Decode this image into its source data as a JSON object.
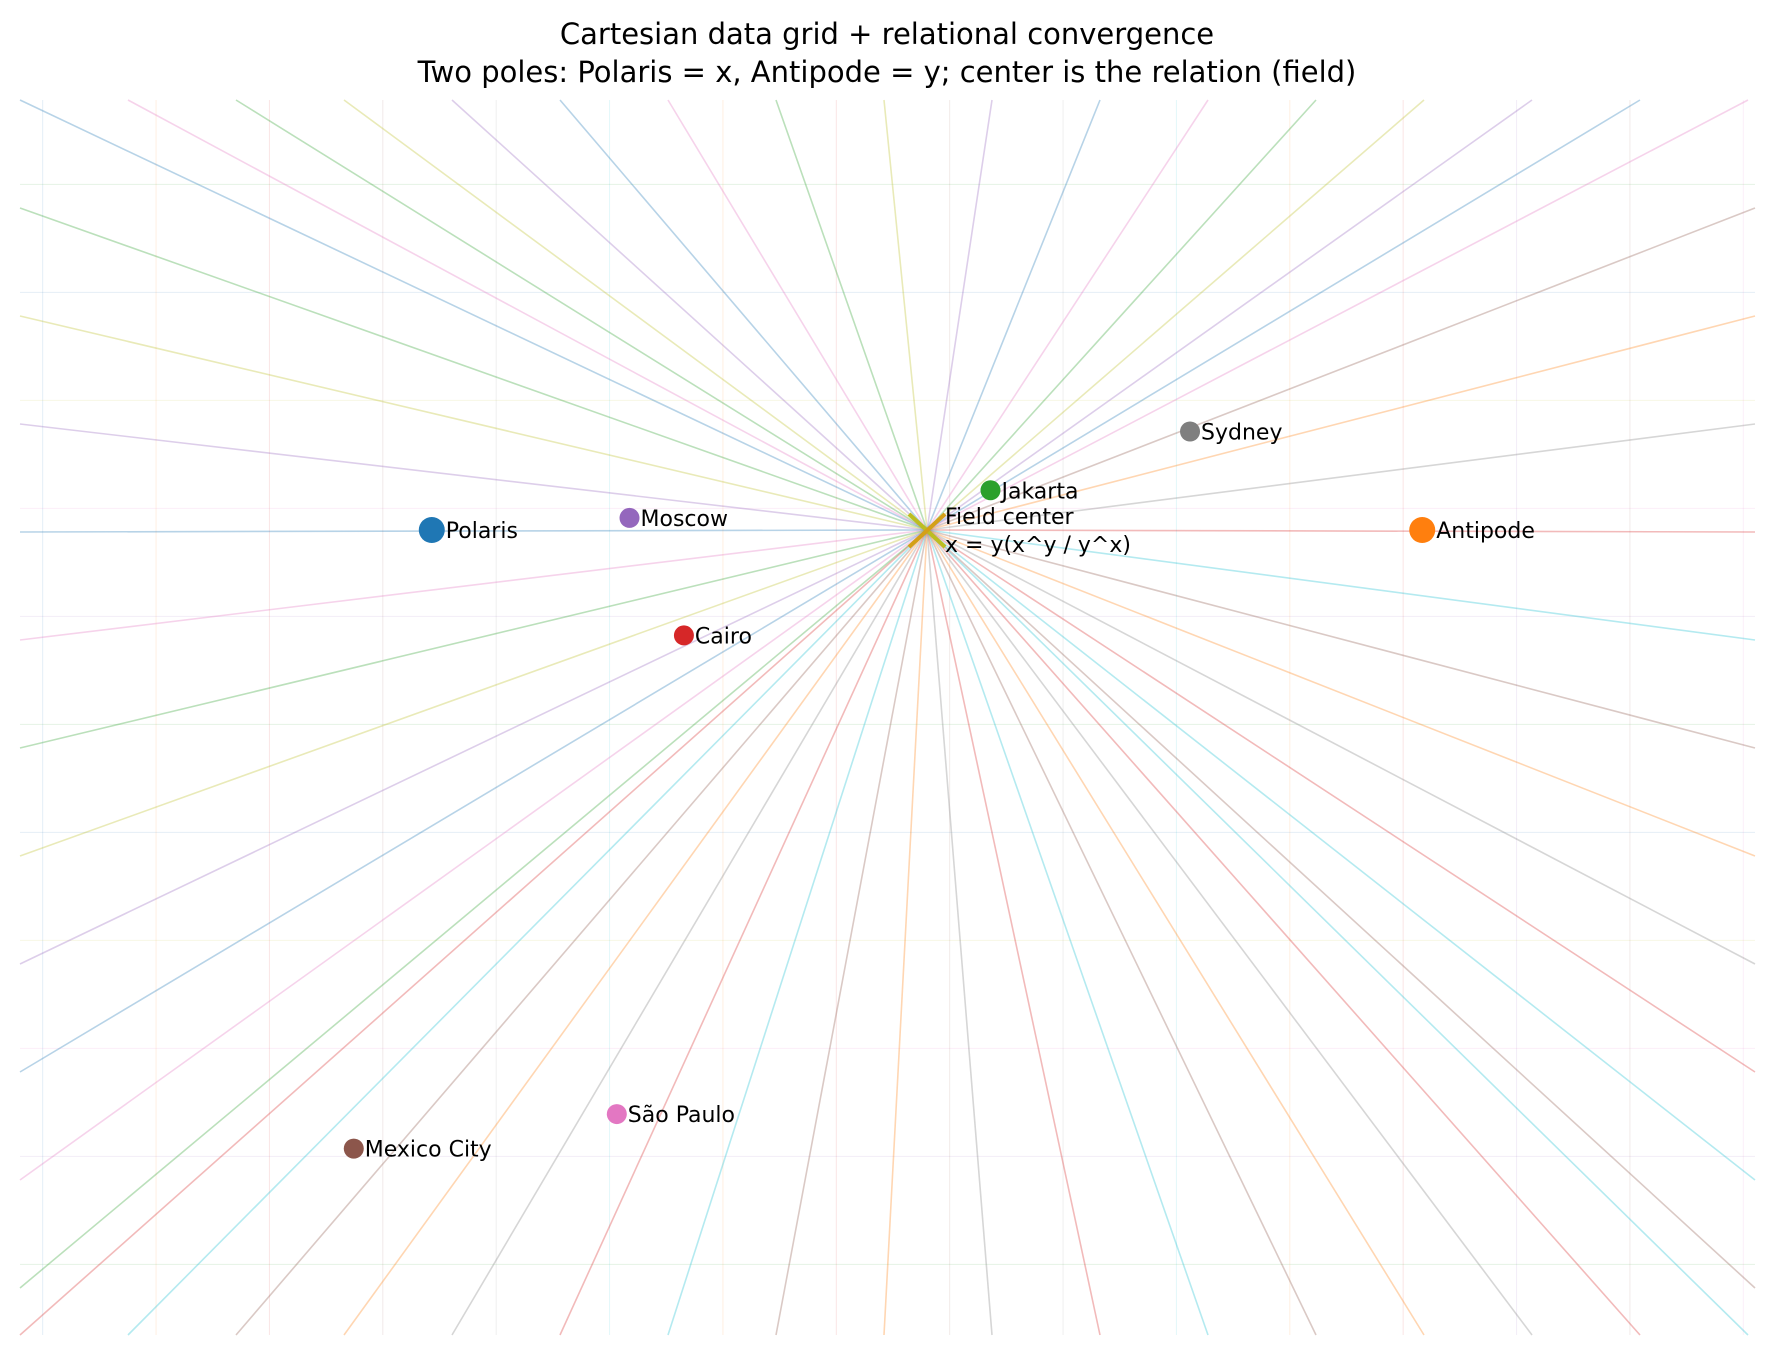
{
  "chart_data": {
    "type": "scatter",
    "title": "Cartesian data grid + relational convergence",
    "subtitle": "Two poles: Polaris = x, Antipode = y; center is the relation (field)",
    "xlim": [
      -5,
      5
    ],
    "ylim": [
      -5,
      5
    ],
    "axes_visible": false,
    "grid": true,
    "grid_spacing": 0.625,
    "points": [
      {
        "name": "Polaris",
        "x": -2.73,
        "y": 0.0,
        "color": "#1f77b4",
        "size": "large"
      },
      {
        "name": "Antipode",
        "x": 2.73,
        "y": 0.0,
        "color": "#ff7f0e",
        "size": "large"
      },
      {
        "name": "Moscow",
        "x": -1.64,
        "y": 0.07,
        "color": "#9467bd",
        "size": "small"
      },
      {
        "name": "Cairo",
        "x": -1.34,
        "y": -0.61,
        "color": "#d62728",
        "size": "small"
      },
      {
        "name": "Jakarta",
        "x": 0.35,
        "y": 0.23,
        "color": "#2ca02c",
        "size": "small"
      },
      {
        "name": "Sydney",
        "x": 1.45,
        "y": 0.57,
        "color": "#7f7f7f",
        "size": "small"
      },
      {
        "name": "São Paulo",
        "x": -1.71,
        "y": -3.38,
        "color": "#e377c2",
        "size": "small"
      },
      {
        "name": "Mexico City",
        "x": -3.16,
        "y": -3.58,
        "color": "#8c564b",
        "size": "small"
      }
    ],
    "center": {
      "x": 0,
      "y": 0,
      "label_lines": [
        "Field center",
        "x = y(x^y / y^x)"
      ],
      "marker": "x"
    },
    "convergence_rays": {
      "count": 72,
      "origin": [
        0,
        0
      ]
    }
  },
  "palette": [
    "#1f77b4",
    "#ff7f0e",
    "#2ca02c",
    "#d62728",
    "#9467bd",
    "#8c564b",
    "#e377c2",
    "#7f7f7f",
    "#bcbd22",
    "#17becf"
  ]
}
